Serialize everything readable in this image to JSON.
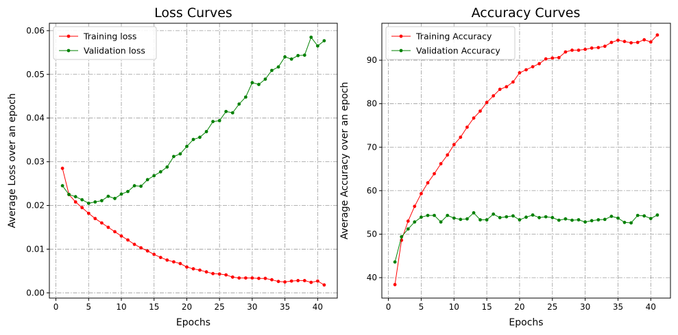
{
  "chart_data": [
    {
      "type": "line",
      "title": "Loss Curves",
      "xlabel": "Epochs",
      "ylabel": "Average Loss over an epoch",
      "xlim": [
        -1,
        43
      ],
      "ylim": [
        -0.0012,
        0.0617
      ],
      "xticks": [
        0,
        5,
        10,
        15,
        20,
        25,
        30,
        35,
        40
      ],
      "yticks": [
        0.0,
        0.01,
        0.02,
        0.03,
        0.04,
        0.05,
        0.06
      ],
      "ytick_labels": [
        "0.00",
        "0.01",
        "0.02",
        "0.03",
        "0.04",
        "0.05",
        "0.06"
      ],
      "grid": true,
      "legend_position": "top-left",
      "x": [
        1,
        2,
        3,
        4,
        5,
        6,
        7,
        8,
        9,
        10,
        11,
        12,
        13,
        14,
        15,
        16,
        17,
        18,
        19,
        20,
        21,
        22,
        23,
        24,
        25,
        26,
        27,
        28,
        29,
        30,
        31,
        32,
        33,
        34,
        35,
        36,
        37,
        38,
        39,
        40,
        41
      ],
      "series": [
        {
          "name": "Training loss",
          "color": "#ff0000",
          "values": [
            0.0285,
            0.0225,
            0.0208,
            0.0195,
            0.0182,
            0.017,
            0.016,
            0.015,
            0.014,
            0.013,
            0.0121,
            0.0111,
            0.0103,
            0.0096,
            0.0088,
            0.0081,
            0.0075,
            0.0071,
            0.0067,
            0.0059,
            0.0055,
            0.0052,
            0.0048,
            0.0044,
            0.0043,
            0.0041,
            0.0036,
            0.0034,
            0.0034,
            0.0034,
            0.0033,
            0.0033,
            0.003,
            0.0026,
            0.0025,
            0.0027,
            0.0028,
            0.0028,
            0.0024,
            0.0027,
            0.0018
          ]
        },
        {
          "name": "Validation loss",
          "color": "#008000",
          "values": [
            0.0245,
            0.0225,
            0.022,
            0.0213,
            0.0205,
            0.0208,
            0.0211,
            0.0221,
            0.0216,
            0.0226,
            0.0232,
            0.0245,
            0.0244,
            0.0259,
            0.0268,
            0.0277,
            0.0288,
            0.0312,
            0.0318,
            0.0335,
            0.0351,
            0.0356,
            0.0369,
            0.0392,
            0.0394,
            0.0415,
            0.0412,
            0.0432,
            0.0448,
            0.0481,
            0.0477,
            0.0489,
            0.0509,
            0.0517,
            0.054,
            0.0535,
            0.0543,
            0.0544,
            0.0585,
            0.0565,
            0.0577
          ]
        }
      ]
    },
    {
      "type": "line",
      "title": "Accuracy Curves",
      "xlabel": "Epochs",
      "ylabel": "Average Accuracy over an epoch",
      "xlim": [
        -1,
        43
      ],
      "ylim": [
        35.3,
        98.5
      ],
      "xticks": [
        0,
        5,
        10,
        15,
        20,
        25,
        30,
        35,
        40
      ],
      "yticks": [
        40,
        50,
        60,
        70,
        80,
        90
      ],
      "ytick_labels": [
        "40",
        "50",
        "60",
        "70",
        "80",
        "90"
      ],
      "grid": true,
      "legend_position": "top-left",
      "x": [
        1,
        2,
        3,
        4,
        5,
        6,
        7,
        8,
        9,
        10,
        11,
        12,
        13,
        14,
        15,
        16,
        17,
        18,
        19,
        20,
        21,
        22,
        23,
        24,
        25,
        26,
        27,
        28,
        29,
        30,
        31,
        32,
        33,
        34,
        35,
        36,
        37,
        38,
        39,
        40,
        41
      ],
      "series": [
        {
          "name": "Training Accuracy",
          "color": "#ff0000",
          "values": [
            38.4,
            48.6,
            53.0,
            56.4,
            59.3,
            61.8,
            63.9,
            66.2,
            68.2,
            70.6,
            72.3,
            74.6,
            76.7,
            78.3,
            80.3,
            81.8,
            83.3,
            83.9,
            85.0,
            87.1,
            87.8,
            88.5,
            89.2,
            90.3,
            90.5,
            90.6,
            91.9,
            92.3,
            92.3,
            92.5,
            92.8,
            92.9,
            93.2,
            94.1,
            94.6,
            94.3,
            94.0,
            94.1,
            94.7,
            94.2,
            95.8
          ]
        },
        {
          "name": "Validation Accuracy",
          "color": "#008000",
          "values": [
            43.6,
            49.4,
            51.2,
            52.8,
            53.9,
            54.3,
            54.3,
            52.8,
            54.3,
            53.7,
            53.4,
            53.5,
            54.9,
            53.3,
            53.3,
            54.6,
            53.8,
            54.0,
            54.2,
            53.3,
            53.9,
            54.4,
            53.8,
            54.0,
            53.8,
            53.2,
            53.5,
            53.2,
            53.3,
            52.8,
            53.1,
            53.3,
            53.4,
            54.1,
            53.7,
            52.7,
            52.6,
            54.3,
            54.2,
            53.6,
            54.4
          ]
        }
      ]
    }
  ]
}
